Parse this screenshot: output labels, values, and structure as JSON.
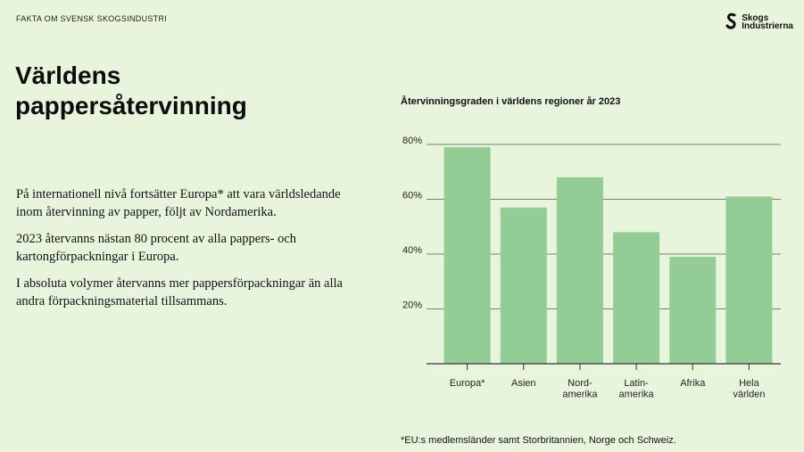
{
  "header": {
    "kicker": "FAKTA OM SVENSK SKOGSINDUSTRI",
    "logo": {
      "icon": "skogsindustrierna-logo-icon",
      "line1": "Skogs",
      "line2": "Industrierna"
    }
  },
  "main": {
    "title": "Världens pappersåtervinning",
    "paragraphs": [
      "På internationell nivå fortsätter Europa* att vara världsledande inom återvinning av papper, följt av Nordamerika.",
      "2023 återvanns nästan 80 procent av alla pappers- och kartongförpackningar i Europa.",
      "I absoluta volymer återvanns mer pappersförpackningar än alla andra förpackningsmaterial tillsammans."
    ]
  },
  "footnote": "*EU:s medlemsländer samt Storbritannien, Norge och Schweiz.",
  "colors": {
    "background": "#e8f5dd",
    "bar": "#93cc94",
    "grid": "#555555",
    "axis": "#333333"
  },
  "chart_data": {
    "type": "bar",
    "title": "Återvinningsgraden i världens regioner år 2023",
    "categories": [
      [
        "Europa*"
      ],
      [
        "Asien"
      ],
      [
        "Nord-",
        "amerika"
      ],
      [
        "Latin-",
        "amerika"
      ],
      [
        "Afrika"
      ],
      [
        "Hela",
        "världen"
      ]
    ],
    "values": [
      79,
      57,
      68,
      48,
      39,
      61
    ],
    "yticks": [
      20,
      40,
      60,
      80
    ],
    "ytick_labels": [
      "20%",
      "40%",
      "60%",
      "80%"
    ],
    "ylim": [
      0,
      80
    ],
    "xlabel": "",
    "ylabel": "",
    "grid": true,
    "legend": "none"
  }
}
